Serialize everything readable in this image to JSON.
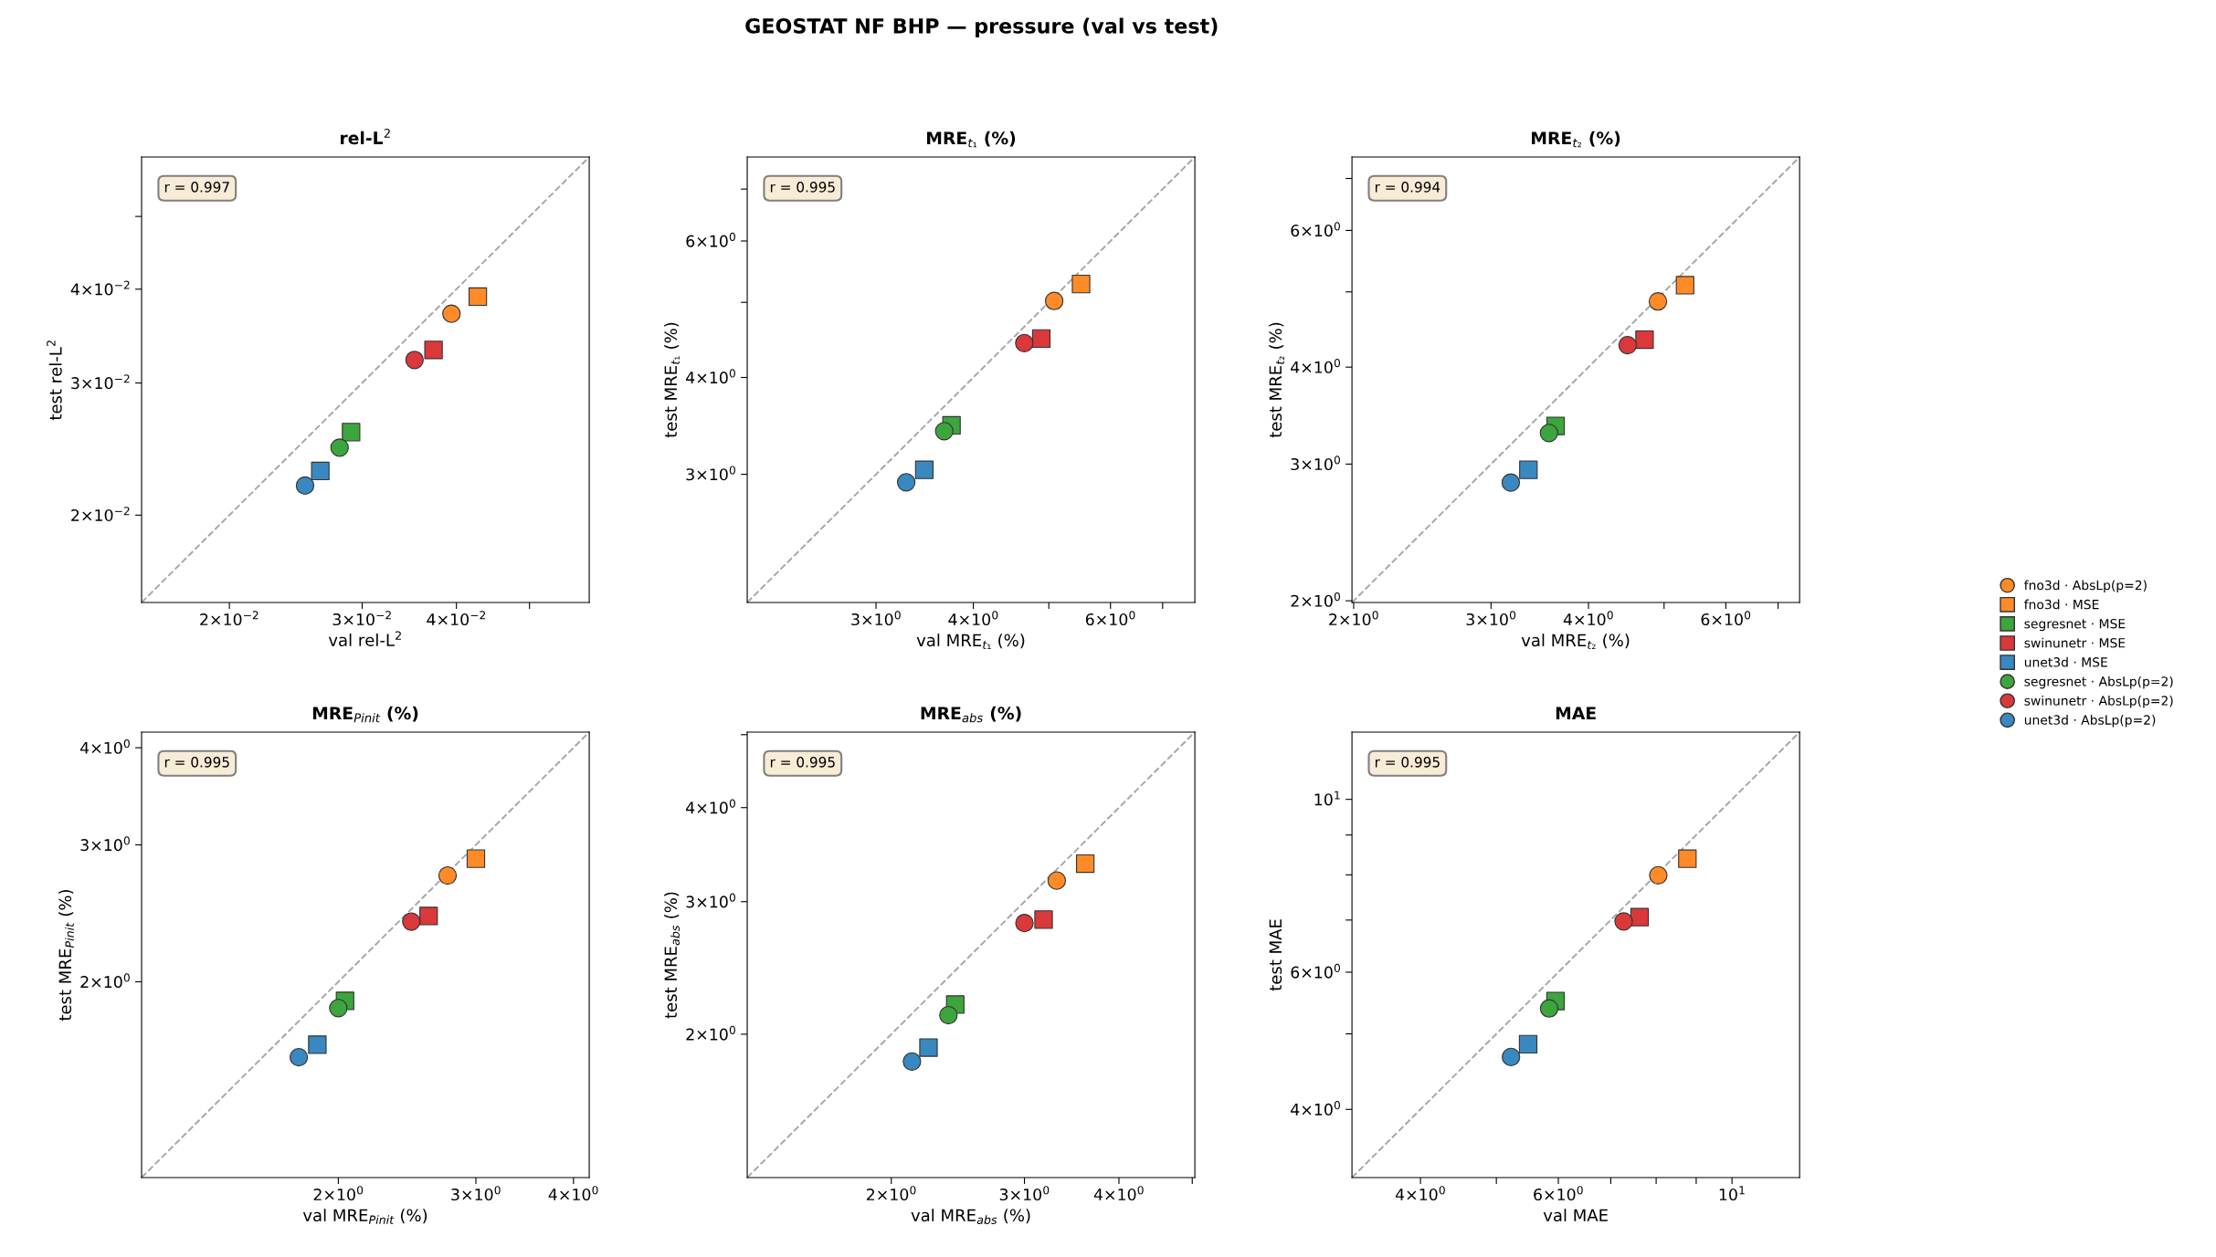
{
  "chart_data": [
    {
      "type": "scatter",
      "title": "rel-L$^{2}$",
      "xlabel": "val rel-L$^{2}$",
      "ylabel": "test rel-L$^{2}$",
      "annotations": [
        "r = 0.997",
        "GEOSTAT NF BHP — pressure (val vs test)"
      ],
      "legend": "right",
      "grid": false,
      "log": "xy",
      "xlim": [
        0.0153,
        0.06
      ],
      "ylim": [
        0.0153,
        0.06
      ],
      "xticks": [
        {
          "value": 0.02,
          "label": "2×10$^{−2}$"
        },
        {
          "value": 0.03,
          "label": "3×10$^{−2}$"
        },
        {
          "value": 0.04,
          "label": "4×10$^{−2}$"
        },
        {
          "value": 0.05,
          "label": null
        }
      ],
      "yticks": [
        {
          "value": 0.02,
          "label": "2×10$^{−2}$"
        },
        {
          "value": 0.03,
          "label": "3×10$^{−2}$"
        },
        {
          "value": 0.04,
          "label": "4×10$^{−2}$"
        },
        {
          "value": 0.05,
          "label": null
        }
      ],
      "series": [
        {
          "name": "fno3d · AbsLp(p=2)",
          "color": "#fe8b28",
          "marker": "circle",
          "x": [
            0.0394
          ],
          "values": [
            0.0371
          ]
        },
        {
          "name": "fno3d · MSE",
          "color": "#fe8b28",
          "marker": "square",
          "x": [
            0.0427
          ],
          "values": [
            0.0391
          ]
        },
        {
          "name": "segresnet · MSE",
          "color": "#3da53d",
          "marker": "square",
          "x": [
            0.029
          ],
          "values": [
            0.0258
          ]
        },
        {
          "name": "swinunetr · MSE",
          "color": "#d9393b",
          "marker": "square",
          "x": [
            0.0373
          ],
          "values": [
            0.0332
          ]
        },
        {
          "name": "unet3d · MSE",
          "color": "#3a88c0",
          "marker": "square",
          "x": [
            0.0264
          ],
          "values": [
            0.0229
          ]
        },
        {
          "name": "segresnet · AbsLp(p=2)",
          "color": "#3da53d",
          "marker": "circle",
          "x": [
            0.028
          ],
          "values": [
            0.0246
          ]
        },
        {
          "name": "swinunetr · AbsLp(p=2)",
          "color": "#d9393b",
          "marker": "circle",
          "x": [
            0.0352
          ],
          "values": [
            0.0322
          ]
        },
        {
          "name": "unet3d · AbsLp(p=2)",
          "color": "#3a88c0",
          "marker": "circle",
          "x": [
            0.0252
          ],
          "values": [
            0.0219
          ]
        },
        {
          "type": "line",
          "color": "#a6a6a6",
          "line_style": "dashed",
          "marker": "none",
          "x": [
            0.0153,
            0.06
          ],
          "values": [
            0.0153,
            0.06
          ]
        }
      ]
    },
    {
      "type": "scatter",
      "title": "MRE$_{t₁}$ (%)",
      "xlabel": "val MRE$_{t₁}$ (%)",
      "ylabel": "test MRE$_{t₁}$ (%)",
      "annotations": [
        "r = 0.995"
      ],
      "grid": false,
      "log": "xy",
      "xlim": [
        2.05,
        7.7
      ],
      "ylim": [
        2.05,
        7.7
      ],
      "xticks": [
        {
          "value": 3,
          "label": "3×10$^{0}$"
        },
        {
          "value": 4,
          "label": "4×10$^{0}$"
        },
        {
          "value": 5,
          "label": null
        },
        {
          "value": 6,
          "label": "6×10$^{0}$"
        },
        {
          "value": 7,
          "label": null
        }
      ],
      "yticks": [
        {
          "value": 3,
          "label": "3×10$^{0}$"
        },
        {
          "value": 4,
          "label": "4×10$^{0}$"
        },
        {
          "value": 5,
          "label": null
        },
        {
          "value": 6,
          "label": "6×10$^{0}$"
        },
        {
          "value": 7,
          "label": null
        }
      ],
      "series": [
        {
          "color": "#fe8b28",
          "marker": "circle",
          "x": [
            5.08
          ],
          "values": [
            5.02
          ]
        },
        {
          "color": "#fe8b28",
          "marker": "square",
          "x": [
            5.5
          ],
          "values": [
            5.28
          ]
        },
        {
          "color": "#3da53d",
          "marker": "square",
          "x": [
            3.75
          ],
          "values": [
            3.47
          ]
        },
        {
          "color": "#d9393b",
          "marker": "square",
          "x": [
            4.89
          ],
          "values": [
            4.49
          ]
        },
        {
          "color": "#3a88c0",
          "marker": "square",
          "x": [
            3.46
          ],
          "values": [
            3.04
          ]
        },
        {
          "color": "#3da53d",
          "marker": "circle",
          "x": [
            3.67
          ],
          "values": [
            3.41
          ]
        },
        {
          "color": "#d9393b",
          "marker": "circle",
          "x": [
            4.65
          ],
          "values": [
            4.43
          ]
        },
        {
          "color": "#3a88c0",
          "marker": "circle",
          "x": [
            3.28
          ],
          "values": [
            2.93
          ]
        },
        {
          "type": "line",
          "color": "#a6a6a6",
          "line_style": "dashed",
          "marker": "none",
          "x": [
            2.05,
            7.7
          ],
          "values": [
            2.05,
            7.7
          ]
        }
      ]
    },
    {
      "type": "scatter",
      "title": "MRE$_{t₂}$ (%)",
      "xlabel": "val MRE$_{t₂}$ (%)",
      "ylabel": "test MRE$_{t₂}$ (%)",
      "annotations": [
        "r = 0.994"
      ],
      "grid": false,
      "log": "xy",
      "xlim": [
        1.99,
        7.46
      ],
      "ylim": [
        1.99,
        7.46
      ],
      "xticks": [
        {
          "value": 2,
          "label": "2×10$^{0}$"
        },
        {
          "value": 3,
          "label": "3×10$^{0}$"
        },
        {
          "value": 4,
          "label": "4×10$^{0}$"
        },
        {
          "value": 5,
          "label": null
        },
        {
          "value": 6,
          "label": "6×10$^{0}$"
        },
        {
          "value": 7,
          "label": null
        }
      ],
      "yticks": [
        {
          "value": 2,
          "label": "2×10$^{0}$"
        },
        {
          "value": 3,
          "label": "3×10$^{0}$"
        },
        {
          "value": 4,
          "label": "4×10$^{0}$"
        },
        {
          "value": 5,
          "label": null
        },
        {
          "value": 6,
          "label": "6×10$^{0}$"
        },
        {
          "value": 7,
          "label": null
        }
      ],
      "series": [
        {
          "color": "#fe8b28",
          "marker": "circle",
          "x": [
            4.91
          ],
          "values": [
            4.86
          ]
        },
        {
          "color": "#fe8b28",
          "marker": "square",
          "x": [
            5.32
          ],
          "values": [
            5.1
          ]
        },
        {
          "color": "#3da53d",
          "marker": "square",
          "x": [
            3.63
          ],
          "values": [
            3.36
          ]
        },
        {
          "color": "#d9393b",
          "marker": "square",
          "x": [
            4.72
          ],
          "values": [
            4.34
          ]
        },
        {
          "color": "#3a88c0",
          "marker": "square",
          "x": [
            3.35
          ],
          "values": [
            2.95
          ]
        },
        {
          "color": "#3da53d",
          "marker": "circle",
          "x": [
            3.56
          ],
          "values": [
            3.29
          ]
        },
        {
          "color": "#d9393b",
          "marker": "circle",
          "x": [
            4.49
          ],
          "values": [
            4.27
          ]
        },
        {
          "color": "#3a88c0",
          "marker": "circle",
          "x": [
            3.18
          ],
          "values": [
            2.84
          ]
        },
        {
          "type": "line",
          "color": "#a6a6a6",
          "line_style": "dashed",
          "marker": "none",
          "x": [
            1.99,
            7.46
          ],
          "values": [
            1.99,
            7.46
          ]
        }
      ]
    },
    {
      "type": "scatter",
      "title": "MRE$_{Pinit}$ (%)",
      "xlabel": "val MRE$_{Pinit}$ (%)",
      "ylabel": "test MRE$_{Pinit}$ (%)",
      "annotations": [
        "r = 0.995"
      ],
      "grid": false,
      "log": "xy",
      "xlim": [
        1.12,
        4.19
      ],
      "ylim": [
        1.12,
        4.19
      ],
      "xticks": [
        {
          "value": 2,
          "label": "2×10$^{0}$"
        },
        {
          "value": 3,
          "label": "3×10$^{0}$"
        },
        {
          "value": 4,
          "label": "4×10$^{0}$"
        }
      ],
      "yticks": [
        {
          "value": 2,
          "label": "2×10$^{0}$"
        },
        {
          "value": 3,
          "label": "3×10$^{0}$"
        },
        {
          "value": 4,
          "label": "4×10$^{0}$"
        }
      ],
      "series": [
        {
          "color": "#fe8b28",
          "marker": "circle",
          "x": [
            2.76
          ],
          "values": [
            2.74
          ]
        },
        {
          "color": "#fe8b28",
          "marker": "square",
          "x": [
            3.0
          ],
          "values": [
            2.88
          ]
        },
        {
          "color": "#3da53d",
          "marker": "square",
          "x": [
            2.04
          ],
          "values": [
            1.89
          ]
        },
        {
          "color": "#d9393b",
          "marker": "square",
          "x": [
            2.61
          ],
          "values": [
            2.43
          ]
        },
        {
          "color": "#3a88c0",
          "marker": "square",
          "x": [
            1.88
          ],
          "values": [
            1.66
          ]
        },
        {
          "color": "#3da53d",
          "marker": "circle",
          "x": [
            2.0
          ],
          "values": [
            1.85
          ]
        },
        {
          "color": "#d9393b",
          "marker": "circle",
          "x": [
            2.48
          ],
          "values": [
            2.39
          ]
        },
        {
          "color": "#3a88c0",
          "marker": "circle",
          "x": [
            1.78
          ],
          "values": [
            1.6
          ]
        },
        {
          "type": "line",
          "color": "#a6a6a6",
          "line_style": "dashed",
          "marker": "none",
          "x": [
            1.12,
            4.19
          ],
          "values": [
            1.12,
            4.19
          ]
        }
      ]
    },
    {
      "type": "scatter",
      "title": "MRE$_{abs}$ (%)",
      "xlabel": "val MRE$_{abs}$ (%)",
      "ylabel": "test MRE$_{abs}$ (%)",
      "annotations": [
        "r = 0.995"
      ],
      "grid": false,
      "log": "xy",
      "xlim": [
        1.29,
        5.04
      ],
      "ylim": [
        1.29,
        5.04
      ],
      "xticks": [
        {
          "value": 2,
          "label": "2×10$^{0}$"
        },
        {
          "value": 3,
          "label": "3×10$^{0}$"
        },
        {
          "value": 4,
          "label": "4×10$^{0}$"
        },
        {
          "value": 5,
          "label": null
        }
      ],
      "yticks": [
        {
          "value": 2,
          "label": "2×10$^{0}$"
        },
        {
          "value": 3,
          "label": "3×10$^{0}$"
        },
        {
          "value": 4,
          "label": "4×10$^{0}$"
        },
        {
          "value": 5,
          "label": null
        }
      ],
      "series": [
        {
          "color": "#fe8b28",
          "marker": "circle",
          "x": [
            3.31
          ],
          "values": [
            3.2
          ]
        },
        {
          "color": "#fe8b28",
          "marker": "square",
          "x": [
            3.61
          ],
          "values": [
            3.37
          ]
        },
        {
          "color": "#3da53d",
          "marker": "square",
          "x": [
            2.43
          ],
          "values": [
            2.19
          ]
        },
        {
          "color": "#d9393b",
          "marker": "square",
          "x": [
            3.18
          ],
          "values": [
            2.84
          ]
        },
        {
          "color": "#3a88c0",
          "marker": "square",
          "x": [
            2.24
          ],
          "values": [
            1.92
          ]
        },
        {
          "color": "#3da53d",
          "marker": "circle",
          "x": [
            2.38
          ],
          "values": [
            2.12
          ]
        },
        {
          "color": "#d9393b",
          "marker": "circle",
          "x": [
            3.0
          ],
          "values": [
            2.81
          ]
        },
        {
          "color": "#3a88c0",
          "marker": "circle",
          "x": [
            2.13
          ],
          "values": [
            1.84
          ]
        },
        {
          "type": "line",
          "color": "#a6a6a6",
          "line_style": "dashed",
          "marker": "none",
          "x": [
            1.29,
            5.04
          ],
          "values": [
            1.29,
            5.04
          ]
        }
      ]
    },
    {
      "type": "scatter",
      "title": "MAE",
      "xlabel": "val MAE",
      "ylabel": "test MAE",
      "annotations": [
        "r = 0.995"
      ],
      "grid": false,
      "log": "xy",
      "xlim": [
        3.27,
        12.2
      ],
      "ylim": [
        3.27,
        12.2
      ],
      "xticks": [
        {
          "value": 4,
          "label": "4×10$^{0}$"
        },
        {
          "value": 5,
          "label": null
        },
        {
          "value": 6,
          "label": "6×10$^{0}$"
        },
        {
          "value": 7,
          "label": null
        },
        {
          "value": 8,
          "label": null
        },
        {
          "value": 9,
          "label": null
        },
        {
          "value": 10,
          "label": "10$^{1}$"
        }
      ],
      "yticks": [
        {
          "value": 4,
          "label": "4×10$^{0}$"
        },
        {
          "value": 5,
          "label": null
        },
        {
          "value": 6,
          "label": "6×10$^{0}$"
        },
        {
          "value": 7,
          "label": null
        },
        {
          "value": 8,
          "label": null
        },
        {
          "value": 9,
          "label": null
        },
        {
          "value": 10,
          "label": "10$^{1}$"
        }
      ],
      "series": [
        {
          "color": "#fe8b28",
          "marker": "circle",
          "x": [
            8.05
          ],
          "values": [
            7.99
          ]
        },
        {
          "color": "#fe8b28",
          "marker": "square",
          "x": [
            8.77
          ],
          "values": [
            8.39
          ]
        },
        {
          "color": "#3da53d",
          "marker": "square",
          "x": [
            5.95
          ],
          "values": [
            5.51
          ]
        },
        {
          "color": "#d9393b",
          "marker": "square",
          "x": [
            7.62
          ],
          "values": [
            7.06
          ]
        },
        {
          "color": "#3a88c0",
          "marker": "square",
          "x": [
            5.49
          ],
          "values": [
            4.85
          ]
        },
        {
          "color": "#3da53d",
          "marker": "circle",
          "x": [
            5.84
          ],
          "values": [
            5.39
          ]
        },
        {
          "color": "#d9393b",
          "marker": "circle",
          "x": [
            7.27
          ],
          "values": [
            6.97
          ]
        },
        {
          "color": "#3a88c0",
          "marker": "circle",
          "x": [
            5.22
          ],
          "values": [
            4.67
          ]
        },
        {
          "type": "line",
          "color": "#a6a6a6",
          "line_style": "dashed",
          "marker": "none",
          "x": [
            3.27,
            12.2
          ],
          "values": [
            3.27,
            12.2
          ]
        }
      ]
    }
  ]
}
